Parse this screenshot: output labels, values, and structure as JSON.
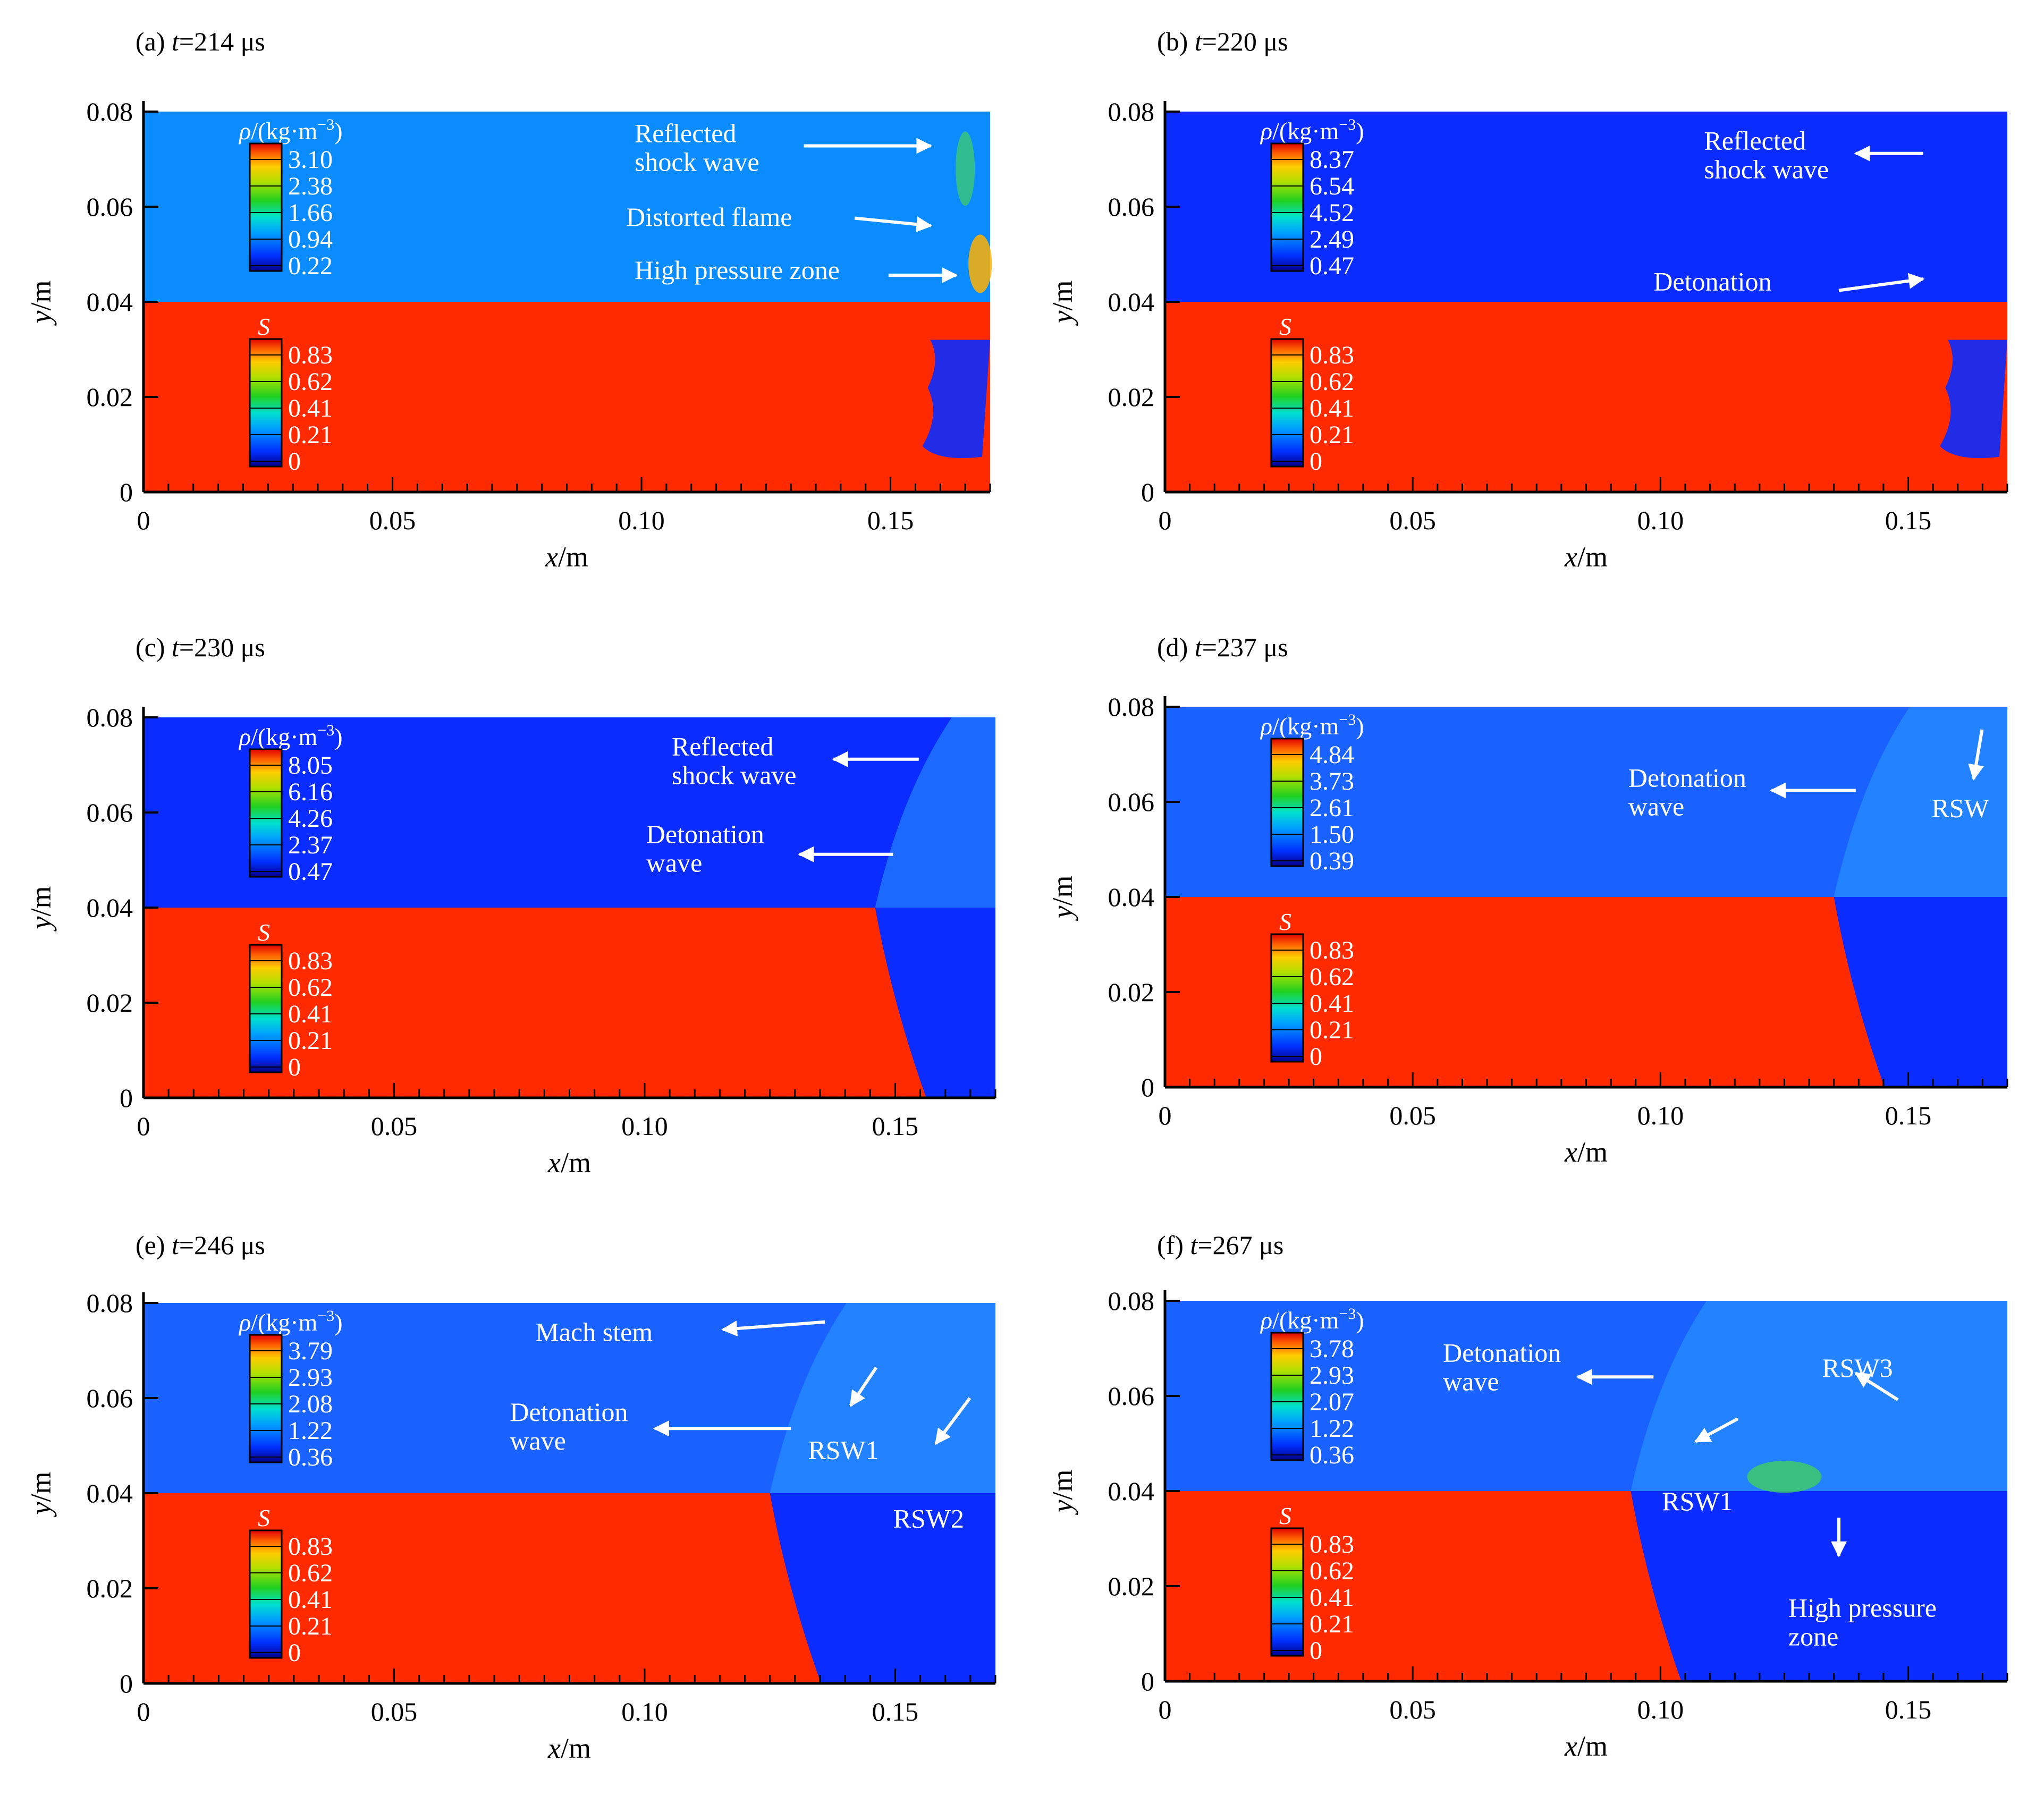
{
  "axis": {
    "y_ticks": [
      "0",
      "0.02",
      "0.04",
      "0.06",
      "0.08"
    ],
    "x_ticks": [
      "0",
      "0.05",
      "0.10",
      "0.15"
    ],
    "y_label_var": "y",
    "y_label_unit": "/m",
    "x_label_var": "x",
    "x_label_unit": "/m"
  },
  "colors": {
    "unburned_red": "#ff2a00",
    "burned_blue": "#0a2cff",
    "light_blue": "#0a8cff",
    "mid_blue": "#1a62ff",
    "arrow": "#ffffff"
  },
  "legend": {
    "rho_label": "ρ/(kg·m",
    "rho_exp": "−3",
    "rho_close": ")",
    "s_label": "S",
    "s_values": [
      "0.83",
      "0.62",
      "0.41",
      "0.21",
      "0"
    ]
  },
  "panels": [
    {
      "id": "a",
      "prefix": "(a) ",
      "t_var": "t",
      "t_value": "=214 μs",
      "rho_values": [
        "3.10",
        "2.38",
        "1.66",
        "0.94",
        "0.22"
      ],
      "annotations": [
        {
          "lines": [
            "Reflected",
            "shock wave"
          ]
        },
        {
          "lines": [
            "Distorted flame"
          ]
        },
        {
          "lines": [
            "High pressure zone"
          ]
        }
      ]
    },
    {
      "id": "b",
      "prefix": "(b) ",
      "t_var": "t",
      "t_value": "=220 μs",
      "rho_values": [
        "8.37",
        "6.54",
        "4.52",
        "2.49",
        "0.47"
      ],
      "annotations": [
        {
          "lines": [
            "Reflected",
            "shock wave"
          ]
        },
        {
          "lines": [
            "Detonation"
          ]
        }
      ]
    },
    {
      "id": "c",
      "prefix": "(c) ",
      "t_var": "t",
      "t_value": "=230 μs",
      "rho_values": [
        "8.05",
        "6.16",
        "4.26",
        "2.37",
        "0.47"
      ],
      "annotations": [
        {
          "lines": [
            "Reflected",
            "shock wave"
          ]
        },
        {
          "lines": [
            "Detonation",
            "wave"
          ]
        }
      ]
    },
    {
      "id": "d",
      "prefix": "(d) ",
      "t_var": "t",
      "t_value": "=237 μs",
      "rho_values": [
        "4.84",
        "3.73",
        "2.61",
        "1.50",
        "0.39"
      ],
      "annotations": [
        {
          "lines": [
            "Detonation",
            "wave"
          ]
        },
        {
          "lines": [
            "RSW"
          ]
        }
      ]
    },
    {
      "id": "e",
      "prefix": "(e) ",
      "t_var": "t",
      "t_value": "=246 μs",
      "rho_values": [
        "3.79",
        "2.93",
        "2.08",
        "1.22",
        "0.36"
      ],
      "annotations": [
        {
          "lines": [
            "Mach stem"
          ]
        },
        {
          "lines": [
            "Detonation",
            "wave"
          ]
        },
        {
          "lines": [
            "RSW1"
          ]
        },
        {
          "lines": [
            "RSW2"
          ]
        }
      ]
    },
    {
      "id": "f",
      "prefix": "(f) ",
      "t_var": "t",
      "t_value": "=267 μs",
      "rho_values": [
        "3.78",
        "2.93",
        "2.07",
        "1.22",
        "0.36"
      ],
      "annotations": [
        {
          "lines": [
            "Detonation",
            "wave"
          ]
        },
        {
          "lines": [
            "RSW3"
          ]
        },
        {
          "lines": [
            "RSW1"
          ]
        },
        {
          "lines": [
            "High pressure",
            "zone"
          ]
        }
      ]
    }
  ]
}
